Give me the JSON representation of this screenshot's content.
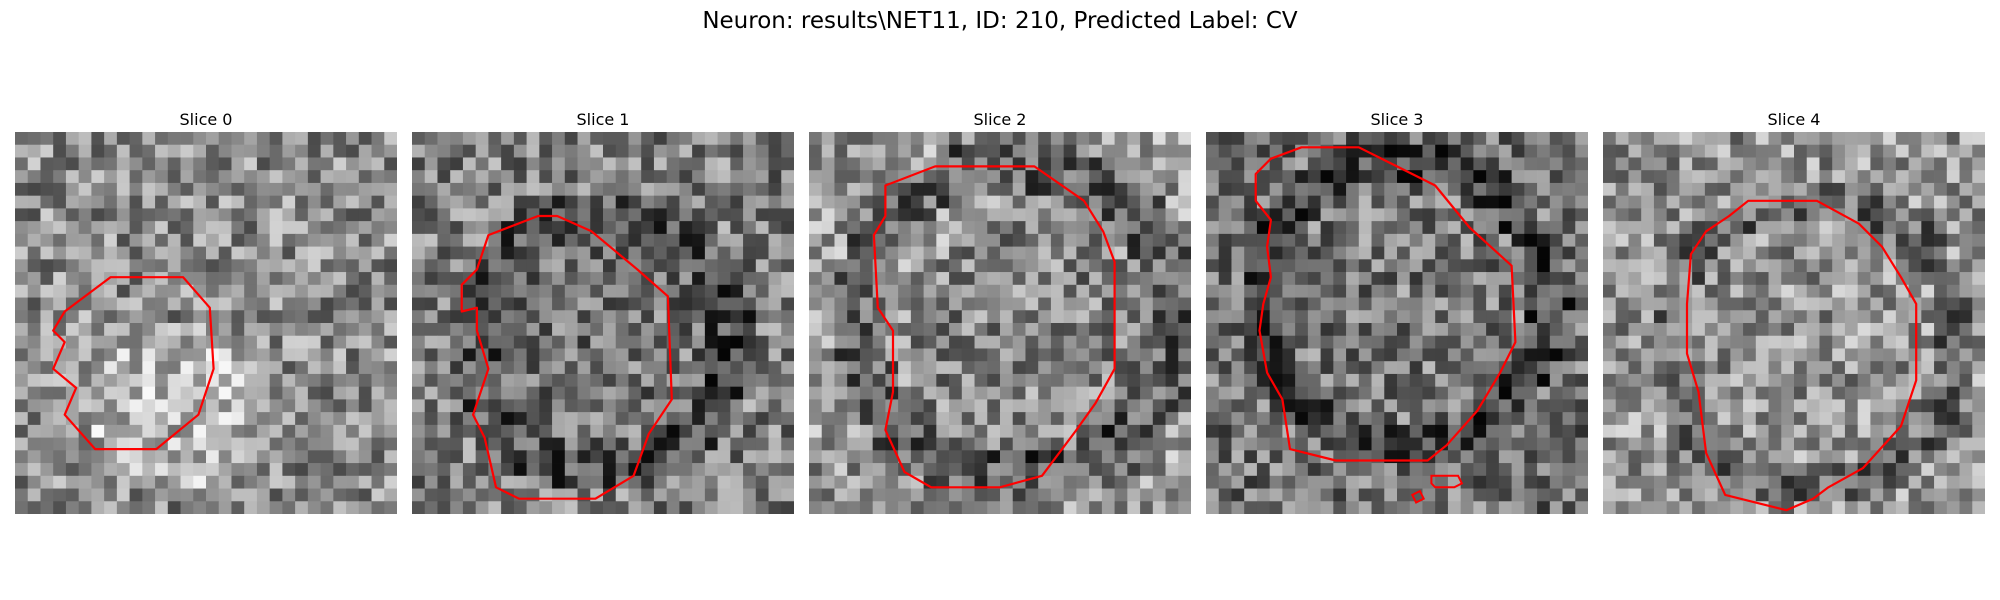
{
  "figure": {
    "title": "Neuron: results\\NET11, ID: 210, Predicted Label: CV"
  },
  "colors": {
    "contour": "#ff0000",
    "background": "#ffffff"
  },
  "panels": [
    {
      "title": "Slice 0"
    },
    {
      "title": "Slice 1"
    },
    {
      "title": "Slice 2"
    },
    {
      "title": "Slice 3"
    },
    {
      "title": "Slice 4"
    }
  ]
}
